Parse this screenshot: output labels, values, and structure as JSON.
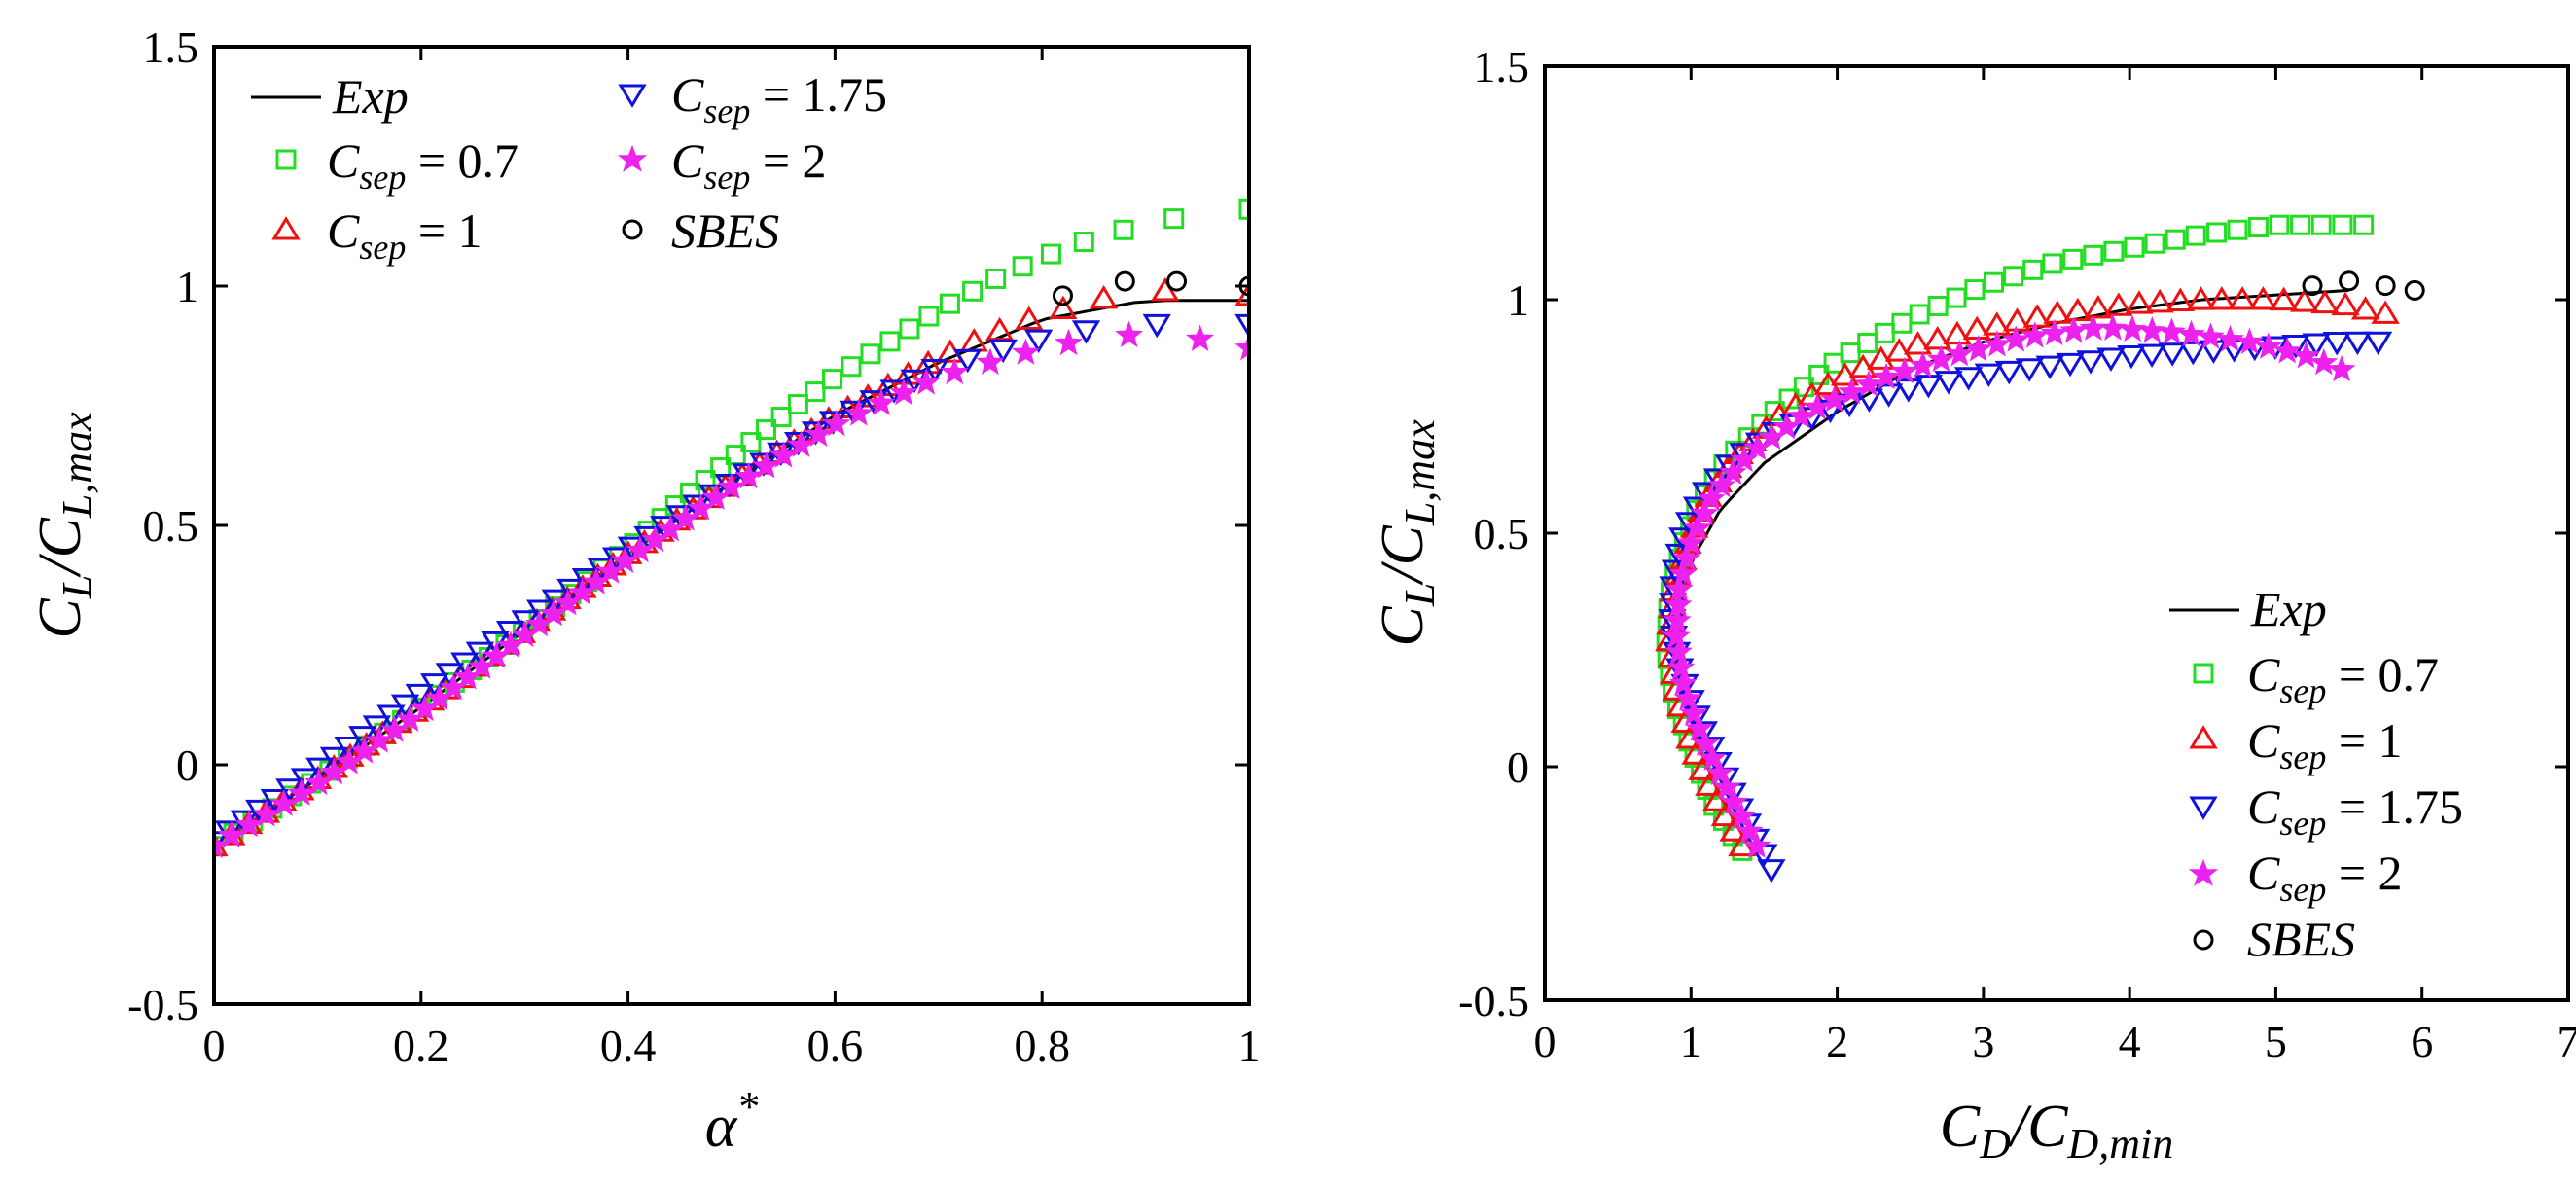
{
  "colors": {
    "exp": "#000000",
    "csep07": "#22dd22",
    "csep1": "#ee1111",
    "csep175": "#1111dd",
    "csep2": "#ee22ee",
    "sbes": "#000000"
  },
  "chart_data": [
    {
      "type": "line",
      "title": "",
      "xlabel": "α*",
      "ylabel": "C_L/C_L,max",
      "xlim": [
        0,
        1
      ],
      "ylim": [
        -0.5,
        1.5
      ],
      "xticks": [
        "0",
        "0.2",
        "0.4",
        "0.6",
        "0.8",
        "1"
      ],
      "yticks": [
        "-0.5",
        "0",
        "0.5",
        "1",
        "1.5"
      ],
      "legend": [
        "Exp",
        "C_sep = 0.7",
        "C_sep = 1",
        "C_sep = 1.75",
        "C_sep = 2",
        "SBES"
      ],
      "legend_position": "top-left, two columns",
      "series": [
        {
          "name": "Exp",
          "style": "line",
          "x": [
            0,
            0.1,
            0.2,
            0.3,
            0.4,
            0.5,
            0.6,
            0.7,
            0.8,
            0.9,
            1.0
          ],
          "y": [
            -0.17,
            -0.03,
            0.12,
            0.28,
            0.44,
            0.59,
            0.73,
            0.84,
            0.93,
            0.97,
            0.97
          ]
        },
        {
          "name": "C_sep = 0.7",
          "style": "square",
          "x": [
            0,
            0.1,
            0.2,
            0.3,
            0.4,
            0.45,
            0.5,
            0.55,
            0.6,
            0.65,
            0.7,
            0.75,
            0.8,
            0.85,
            0.9,
            0.95,
            1.0
          ],
          "y": [
            -0.17,
            -0.03,
            0.12,
            0.28,
            0.45,
            0.55,
            0.64,
            0.73,
            0.81,
            0.88,
            0.95,
            1.01,
            1.06,
            1.1,
            1.13,
            1.15,
            1.16
          ]
        },
        {
          "name": "C_sep = 1",
          "style": "triangle-up",
          "x": [
            0,
            0.1,
            0.2,
            0.3,
            0.4,
            0.5,
            0.6,
            0.65,
            0.7,
            0.75,
            0.8,
            0.85,
            0.9,
            0.95,
            1.0
          ],
          "y": [
            -0.17,
            -0.03,
            0.12,
            0.28,
            0.44,
            0.59,
            0.73,
            0.79,
            0.85,
            0.9,
            0.94,
            0.97,
            0.99,
            0.99,
            0.98
          ]
        },
        {
          "name": "C_sep = 1.75",
          "style": "triangle-down",
          "x": [
            0,
            0.1,
            0.2,
            0.3,
            0.4,
            0.5,
            0.6,
            0.7,
            0.8,
            0.85,
            0.9,
            0.95,
            1.0
          ],
          "y": [
            -0.16,
            -0.01,
            0.15,
            0.3,
            0.45,
            0.59,
            0.72,
            0.83,
            0.89,
            0.91,
            0.92,
            0.92,
            0.92
          ]
        },
        {
          "name": "C_sep = 2",
          "style": "star",
          "x": [
            0,
            0.1,
            0.2,
            0.3,
            0.4,
            0.5,
            0.6,
            0.7,
            0.8,
            0.85,
            0.9,
            0.95,
            1.0
          ],
          "y": [
            -0.17,
            -0.04,
            0.11,
            0.27,
            0.43,
            0.58,
            0.71,
            0.81,
            0.87,
            0.89,
            0.9,
            0.89,
            0.87
          ]
        },
        {
          "name": "SBES",
          "style": "circle",
          "x": [
            0.82,
            0.88,
            0.93,
            1.0
          ],
          "y": [
            0.98,
            1.01,
            1.01,
            1.0
          ]
        }
      ]
    },
    {
      "type": "line",
      "title": "",
      "xlabel": "C_D/C_D,min",
      "ylabel": "C_L/C_L,max",
      "xlim": [
        0,
        7
      ],
      "ylim": [
        -0.5,
        1.5
      ],
      "xticks": [
        "0",
        "1",
        "2",
        "3",
        "4",
        "5",
        "6",
        "7"
      ],
      "yticks": [
        "-0.5",
        "0",
        "0.5",
        "1",
        "1.5"
      ],
      "legend": [
        "Exp",
        "C_sep = 0.7",
        "C_sep = 1",
        "C_sep = 1.75",
        "C_sep = 2",
        "SBES"
      ],
      "legend_position": "bottom-right",
      "series": [
        {
          "name": "Exp",
          "style": "line",
          "x": [
            1.4,
            1.2,
            1.05,
            0.95,
            0.9,
            0.92,
            1.02,
            1.2,
            1.5,
            2.0,
            2.5,
            3.0,
            3.5,
            4.0,
            4.5,
            5.0,
            5.5
          ],
          "y": [
            -0.17,
            -0.06,
            0.05,
            0.15,
            0.25,
            0.35,
            0.45,
            0.55,
            0.65,
            0.76,
            0.85,
            0.91,
            0.95,
            0.98,
            1.0,
            1.01,
            1.02
          ]
        },
        {
          "name": "C_sep = 0.7",
          "style": "square",
          "x": [
            1.35,
            1.15,
            1.0,
            0.88,
            0.83,
            0.85,
            0.93,
            1.05,
            1.25,
            1.6,
            2.0,
            2.5,
            3.0,
            3.5,
            4.0,
            4.5,
            5.0,
            5.6
          ],
          "y": [
            -0.18,
            -0.08,
            0.04,
            0.15,
            0.25,
            0.36,
            0.46,
            0.56,
            0.66,
            0.77,
            0.87,
            0.96,
            1.03,
            1.08,
            1.11,
            1.14,
            1.16,
            1.16
          ]
        },
        {
          "name": "C_sep = 1",
          "style": "triangle-up",
          "x": [
            1.35,
            1.15,
            1.0,
            0.9,
            0.85,
            0.88,
            0.98,
            1.1,
            1.3,
            1.6,
            2.0,
            2.5,
            3.0,
            3.5,
            4.0,
            4.5,
            5.0,
            5.45,
            5.75
          ],
          "y": [
            -0.17,
            -0.06,
            0.05,
            0.16,
            0.27,
            0.38,
            0.48,
            0.57,
            0.66,
            0.75,
            0.83,
            0.9,
            0.94,
            0.97,
            0.99,
            1.0,
            1.0,
            0.99,
            0.97
          ]
        },
        {
          "name": "C_sep = 1.75",
          "style": "triangle-down",
          "x": [
            1.55,
            1.35,
            1.2,
            1.05,
            0.93,
            0.87,
            0.88,
            0.95,
            1.08,
            1.3,
            1.6,
            2.0,
            2.5,
            3.0,
            3.5,
            4.0,
            4.5,
            5.0,
            5.45,
            5.7
          ],
          "y": [
            -0.22,
            -0.1,
            0.0,
            0.1,
            0.2,
            0.3,
            0.4,
            0.5,
            0.58,
            0.66,
            0.72,
            0.77,
            0.81,
            0.84,
            0.86,
            0.88,
            0.89,
            0.9,
            0.91,
            0.91
          ]
        },
        {
          "name": "C_sep = 2",
          "style": "star",
          "x": [
            1.45,
            1.25,
            1.08,
            0.95,
            0.9,
            0.92,
            1.0,
            1.15,
            1.4,
            1.8,
            2.3,
            2.8,
            3.3,
            3.8,
            4.3,
            4.8,
            5.2,
            5.45
          ],
          "y": [
            -0.17,
            -0.05,
            0.06,
            0.17,
            0.28,
            0.38,
            0.48,
            0.58,
            0.67,
            0.76,
            0.83,
            0.88,
            0.92,
            0.94,
            0.93,
            0.91,
            0.88,
            0.85
          ]
        },
        {
          "name": "SBES",
          "style": "circle",
          "x": [
            5.25,
            5.5,
            5.75,
            5.95
          ],
          "y": [
            1.03,
            1.04,
            1.03,
            1.02
          ]
        }
      ]
    }
  ]
}
